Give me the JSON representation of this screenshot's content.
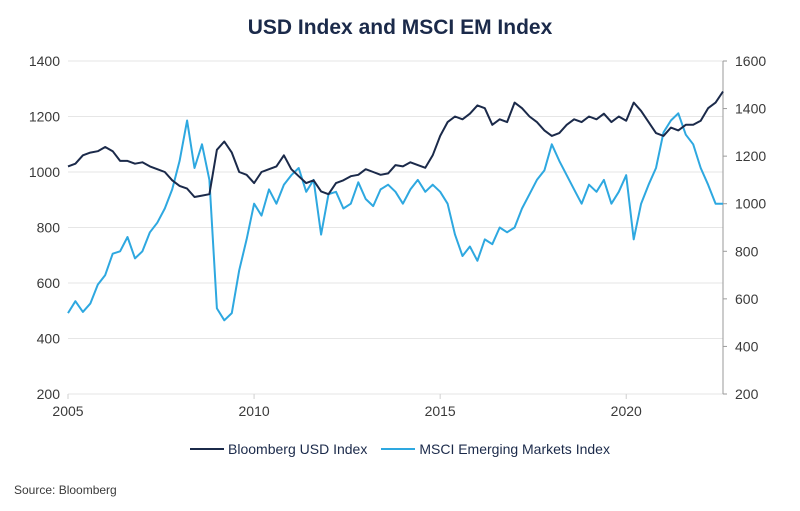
{
  "chart_data": {
    "type": "line",
    "title": "USD Index and MSCI EM Index",
    "xlabel": "",
    "ylabel": "",
    "x_ticks": [
      "2005",
      "2010",
      "2015",
      "2020"
    ],
    "xlim": [
      2005,
      2022.6
    ],
    "y_left": {
      "ticks": [
        "200",
        "400",
        "600",
        "800",
        "1000",
        "1200",
        "1400"
      ],
      "ylim": [
        200,
        1400
      ]
    },
    "y_right": {
      "ticks": [
        "200",
        "400",
        "600",
        "800",
        "1000",
        "1200",
        "1400",
        "1600"
      ],
      "ylim": [
        200,
        1600
      ]
    },
    "grid": true,
    "legend_position": "bottom",
    "series": [
      {
        "name": "Bloomberg USD Index",
        "axis": "left",
        "color": "#1b2a4a",
        "x": [
          2005.0,
          2005.2,
          2005.4,
          2005.6,
          2005.8,
          2006.0,
          2006.2,
          2006.4,
          2006.6,
          2006.8,
          2007.0,
          2007.2,
          2007.4,
          2007.6,
          2007.8,
          2008.0,
          2008.2,
          2008.4,
          2008.6,
          2008.8,
          2009.0,
          2009.2,
          2009.4,
          2009.6,
          2009.8,
          2010.0,
          2010.2,
          2010.4,
          2010.6,
          2010.8,
          2011.0,
          2011.2,
          2011.4,
          2011.6,
          2011.8,
          2012.0,
          2012.2,
          2012.4,
          2012.6,
          2012.8,
          2013.0,
          2013.2,
          2013.4,
          2013.6,
          2013.8,
          2014.0,
          2014.2,
          2014.4,
          2014.6,
          2014.8,
          2015.0,
          2015.2,
          2015.4,
          2015.6,
          2015.8,
          2016.0,
          2016.2,
          2016.4,
          2016.6,
          2016.8,
          2017.0,
          2017.2,
          2017.4,
          2017.6,
          2017.8,
          2018.0,
          2018.2,
          2018.4,
          2018.6,
          2018.8,
          2019.0,
          2019.2,
          2019.4,
          2019.6,
          2019.8,
          2020.0,
          2020.2,
          2020.4,
          2020.6,
          2020.8,
          2021.0,
          2021.2,
          2021.4,
          2021.6,
          2021.8,
          2022.0,
          2022.2,
          2022.4,
          2022.6
        ],
        "values": [
          1020,
          1030,
          1060,
          1070,
          1075,
          1090,
          1075,
          1040,
          1040,
          1030,
          1035,
          1020,
          1010,
          1000,
          970,
          950,
          940,
          910,
          915,
          920,
          1080,
          1110,
          1070,
          1000,
          990,
          960,
          1000,
          1010,
          1020,
          1060,
          1010,
          985,
          960,
          970,
          930,
          920,
          960,
          970,
          985,
          990,
          1010,
          1000,
          990,
          995,
          1025,
          1020,
          1035,
          1025,
          1015,
          1060,
          1130,
          1180,
          1200,
          1190,
          1210,
          1240,
          1230,
          1170,
          1190,
          1180,
          1250,
          1230,
          1200,
          1180,
          1150,
          1130,
          1140,
          1170,
          1190,
          1180,
          1200,
          1190,
          1210,
          1180,
          1200,
          1185,
          1250,
          1220,
          1180,
          1140,
          1130,
          1160,
          1150,
          1170,
          1170,
          1185,
          1230,
          1250,
          1290
        ]
      },
      {
        "name": "MSCI Emerging Markets Index",
        "axis": "right",
        "color": "#2ea8e0",
        "x": [
          2005.0,
          2005.2,
          2005.4,
          2005.6,
          2005.8,
          2006.0,
          2006.2,
          2006.4,
          2006.6,
          2006.8,
          2007.0,
          2007.2,
          2007.4,
          2007.6,
          2007.8,
          2008.0,
          2008.2,
          2008.4,
          2008.6,
          2008.8,
          2009.0,
          2009.2,
          2009.4,
          2009.6,
          2009.8,
          2010.0,
          2010.2,
          2010.4,
          2010.6,
          2010.8,
          2011.0,
          2011.2,
          2011.4,
          2011.6,
          2011.8,
          2012.0,
          2012.2,
          2012.4,
          2012.6,
          2012.8,
          2013.0,
          2013.2,
          2013.4,
          2013.6,
          2013.8,
          2014.0,
          2014.2,
          2014.4,
          2014.6,
          2014.8,
          2015.0,
          2015.2,
          2015.4,
          2015.6,
          2015.8,
          2016.0,
          2016.2,
          2016.4,
          2016.6,
          2016.8,
          2017.0,
          2017.2,
          2017.4,
          2017.6,
          2017.8,
          2018.0,
          2018.2,
          2018.4,
          2018.6,
          2018.8,
          2019.0,
          2019.2,
          2019.4,
          2019.6,
          2019.8,
          2020.0,
          2020.2,
          2020.4,
          2020.6,
          2020.8,
          2021.0,
          2021.2,
          2021.4,
          2021.6,
          2021.8,
          2022.0,
          2022.2,
          2022.4,
          2022.6
        ],
        "values": [
          540,
          590,
          545,
          580,
          660,
          700,
          790,
          800,
          860,
          770,
          800,
          880,
          920,
          980,
          1060,
          1180,
          1350,
          1150,
          1250,
          1100,
          560,
          510,
          540,
          720,
          850,
          1000,
          950,
          1060,
          1000,
          1080,
          1120,
          1150,
          1050,
          1100,
          870,
          1040,
          1050,
          980,
          1000,
          1090,
          1020,
          990,
          1060,
          1080,
          1050,
          1000,
          1060,
          1100,
          1050,
          1080,
          1050,
          1000,
          870,
          780,
          820,
          760,
          850,
          830,
          900,
          880,
          900,
          980,
          1040,
          1100,
          1140,
          1250,
          1180,
          1120,
          1060,
          1000,
          1080,
          1050,
          1100,
          1000,
          1050,
          1120,
          850,
          1000,
          1080,
          1150,
          1300,
          1350,
          1380,
          1290,
          1250,
          1150,
          1080,
          1000,
          1000
        ]
      }
    ]
  },
  "legend": {
    "items": [
      {
        "label": "Bloomberg USD Index",
        "color": "#1b2a4a"
      },
      {
        "label": "MSCI Emerging Markets Index",
        "color": "#2ea8e0"
      }
    ]
  },
  "source": "Source: Bloomberg"
}
